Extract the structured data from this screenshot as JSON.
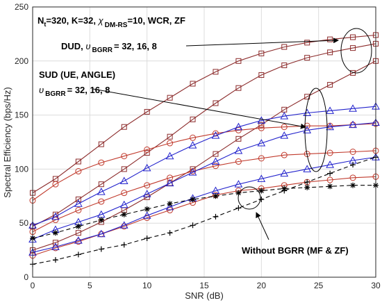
{
  "chart_data": {
    "type": "line",
    "xlabel": "SNR (dB)",
    "ylabel": "Spectral Efficiency (bps/Hz)",
    "xlim": [
      0,
      30
    ],
    "ylim": [
      0,
      250
    ],
    "xticks": [
      0,
      5,
      10,
      15,
      20,
      25,
      30
    ],
    "yticks": [
      0,
      50,
      100,
      150,
      200,
      250
    ],
    "grid": true,
    "annotations": {
      "params_main": "N",
      "params_sub": "t",
      "params_rest1": "=320, K=32, ",
      "params_chi": "χ",
      "params_chi_sub": "DM-RS",
      "params_rest2": "=10, WCR, ZF",
      "dud_prefix": "DUD, ",
      "upsilon": "υ",
      "bgrr_sub": "BGRR",
      "dud_values": "= 32, 16, 8",
      "sud_label": "SUD (UE, ANGLE)",
      "sud_values": "= 32, 16, 8",
      "without_label": "Without BGRR (MF & ZF)"
    },
    "series": [
      {
        "marker": "square",
        "color": "#8b2a2a",
        "x": [
          0,
          2,
          4,
          6,
          8,
          10,
          12,
          14,
          16,
          18,
          20,
          22,
          24,
          26,
          28,
          30
        ],
        "y": [
          78,
          91,
          107,
          123,
          139,
          153,
          166,
          179,
          190,
          200,
          207,
          213,
          217,
          220,
          222,
          224
        ]
      },
      {
        "marker": "square",
        "color": "#8b2a2a",
        "x": [
          0,
          2,
          4,
          6,
          8,
          10,
          12,
          14,
          16,
          18,
          20,
          22,
          24,
          26,
          28,
          30
        ],
        "y": [
          47,
          58,
          72,
          86,
          100,
          115,
          130,
          146,
          161,
          175,
          187,
          196,
          203,
          208,
          212,
          216
        ]
      },
      {
        "marker": "square",
        "color": "#8b2a2a",
        "x": [
          0,
          2,
          4,
          6,
          8,
          10,
          12,
          14,
          16,
          18,
          20,
          22,
          24,
          26,
          28,
          30
        ],
        "y": [
          25,
          32,
          41,
          51,
          62,
          74,
          87,
          100,
          114,
          128,
          141,
          155,
          167,
          178,
          189,
          200
        ]
      },
      {
        "marker": "circle",
        "color": "#c0392b",
        "x": [
          0,
          2,
          4,
          6,
          8,
          10,
          12,
          14,
          16,
          18,
          20,
          22,
          24,
          26,
          28,
          30
        ],
        "y": [
          71,
          86,
          98,
          106,
          112,
          118,
          124,
          129,
          133,
          136,
          138,
          139,
          140,
          140,
          141,
          142
        ]
      },
      {
        "marker": "circle",
        "color": "#c0392b",
        "x": [
          0,
          2,
          4,
          6,
          8,
          10,
          12,
          14,
          16,
          18,
          20,
          22,
          24,
          26,
          28,
          30
        ],
        "y": [
          42,
          53,
          62,
          70,
          78,
          85,
          92,
          98,
          103,
          107,
          110,
          113,
          114,
          115,
          116,
          117
        ]
      },
      {
        "marker": "circle",
        "color": "#c0392b",
        "x": [
          0,
          2,
          4,
          6,
          8,
          10,
          12,
          14,
          16,
          18,
          20,
          22,
          24,
          26,
          28,
          30
        ],
        "y": [
          20,
          27,
          33,
          40,
          47,
          55,
          62,
          69,
          76,
          80,
          82,
          85,
          88,
          90,
          92,
          93
        ]
      },
      {
        "marker": "triangle",
        "color": "#2222cc",
        "x": [
          0,
          2,
          4,
          6,
          8,
          10,
          12,
          14,
          16,
          18,
          20,
          22,
          24,
          26,
          28,
          30
        ],
        "y": [
          48,
          56,
          68,
          79,
          89,
          101,
          112,
          122,
          131,
          139,
          145,
          149,
          152,
          154,
          156,
          158
        ]
      },
      {
        "marker": "triangle",
        "color": "#2222cc",
        "x": [
          0,
          2,
          4,
          6,
          8,
          10,
          12,
          14,
          16,
          18,
          20,
          22,
          24,
          26,
          28,
          30
        ],
        "y": [
          35,
          44,
          51,
          58,
          67,
          77,
          87,
          97,
          107,
          117,
          124,
          131,
          136,
          139,
          141,
          143
        ]
      },
      {
        "marker": "triangle",
        "color": "#2222cc",
        "x": [
          0,
          2,
          4,
          6,
          8,
          10,
          12,
          14,
          16,
          18,
          20,
          22,
          24,
          26,
          28,
          30
        ],
        "y": [
          23,
          28,
          34,
          40,
          48,
          57,
          65,
          73,
          80,
          86,
          91,
          96,
          100,
          104,
          108,
          111
        ]
      },
      {
        "marker": "star",
        "color": "#000000",
        "dashed": true,
        "x": [
          0,
          2,
          4,
          6,
          8,
          10,
          12,
          14,
          16,
          18,
          20,
          22,
          24,
          26,
          28,
          30
        ],
        "y": [
          36,
          41,
          47,
          53,
          58,
          63,
          68,
          72,
          75,
          78,
          80,
          82,
          83,
          84,
          85,
          85
        ]
      },
      {
        "marker": "plus",
        "color": "#000000",
        "dashed": true,
        "x": [
          0,
          2,
          4,
          6,
          8,
          10,
          12,
          14,
          16,
          18,
          20,
          22,
          24,
          26,
          28,
          30
        ],
        "y": [
          12,
          16,
          21,
          26,
          30,
          36,
          41,
          48,
          56,
          64,
          72,
          80,
          88,
          96,
          104,
          111
        ]
      }
    ]
  }
}
